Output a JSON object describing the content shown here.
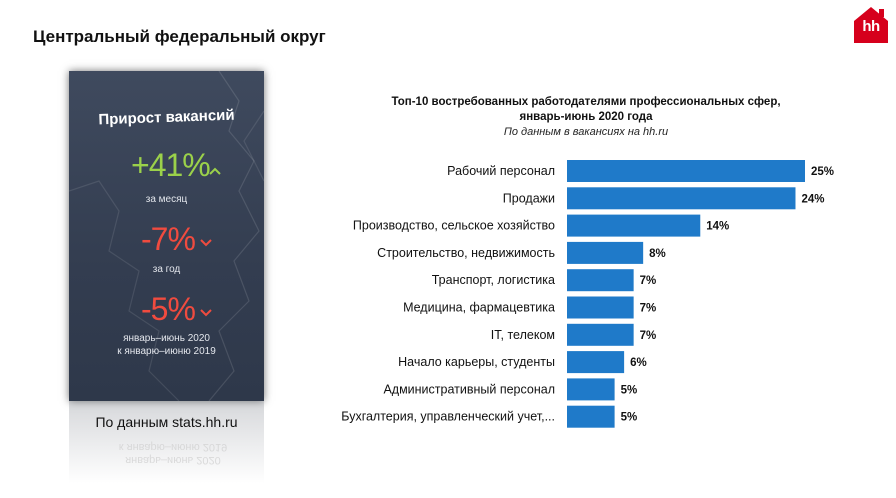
{
  "page": {
    "title": "Центральный федеральный округ"
  },
  "brand": {
    "logo_text": "hh",
    "color": "#d6001c"
  },
  "panel": {
    "heading": "Прирост вакансий",
    "metrics": [
      {
        "value": "+41%",
        "direction": "up",
        "sub": [
          "за месяц"
        ],
        "color": "#9bd14a"
      },
      {
        "value": "-7%",
        "direction": "down",
        "sub": [
          "за год"
        ],
        "color": "#f04b3f"
      },
      {
        "value": "-5%",
        "direction": "down",
        "sub": [
          "январь–июнь 2020",
          "к январю–июню 2019"
        ],
        "color": "#f04b3f"
      }
    ],
    "source": "По данным stats.hh.ru"
  },
  "chart_data": {
    "type": "bar",
    "orientation": "horizontal",
    "title": "Топ-10 востребованных работодателями профессиональных сфер, январь-июнь 2020 года",
    "title_lines": [
      "Топ-10 востребованных работодателями профессиональных сфер,",
      "январь-июнь 2020 года"
    ],
    "subtitle": "По данным в вакансиях на hh.ru",
    "categories": [
      "Рабочий персонал",
      "Продажи",
      "Производство, сельское хозяйство",
      "Строительство, недвижимость",
      "Транспорт, логистика",
      "Медицина, фармацевтика",
      "IT, телеком",
      "Начало карьеры, студенты",
      "Административный персонал",
      "Бухгалтерия, управленческий учет,..."
    ],
    "values": [
      25,
      24,
      14,
      8,
      7,
      7,
      7,
      6,
      5,
      5
    ],
    "data_labels": [
      "25%",
      "24%",
      "14%",
      "8%",
      "7%",
      "7%",
      "7%",
      "6%",
      "5%",
      "5%"
    ],
    "bar_color": "#1f7ac9",
    "grid": false
  }
}
